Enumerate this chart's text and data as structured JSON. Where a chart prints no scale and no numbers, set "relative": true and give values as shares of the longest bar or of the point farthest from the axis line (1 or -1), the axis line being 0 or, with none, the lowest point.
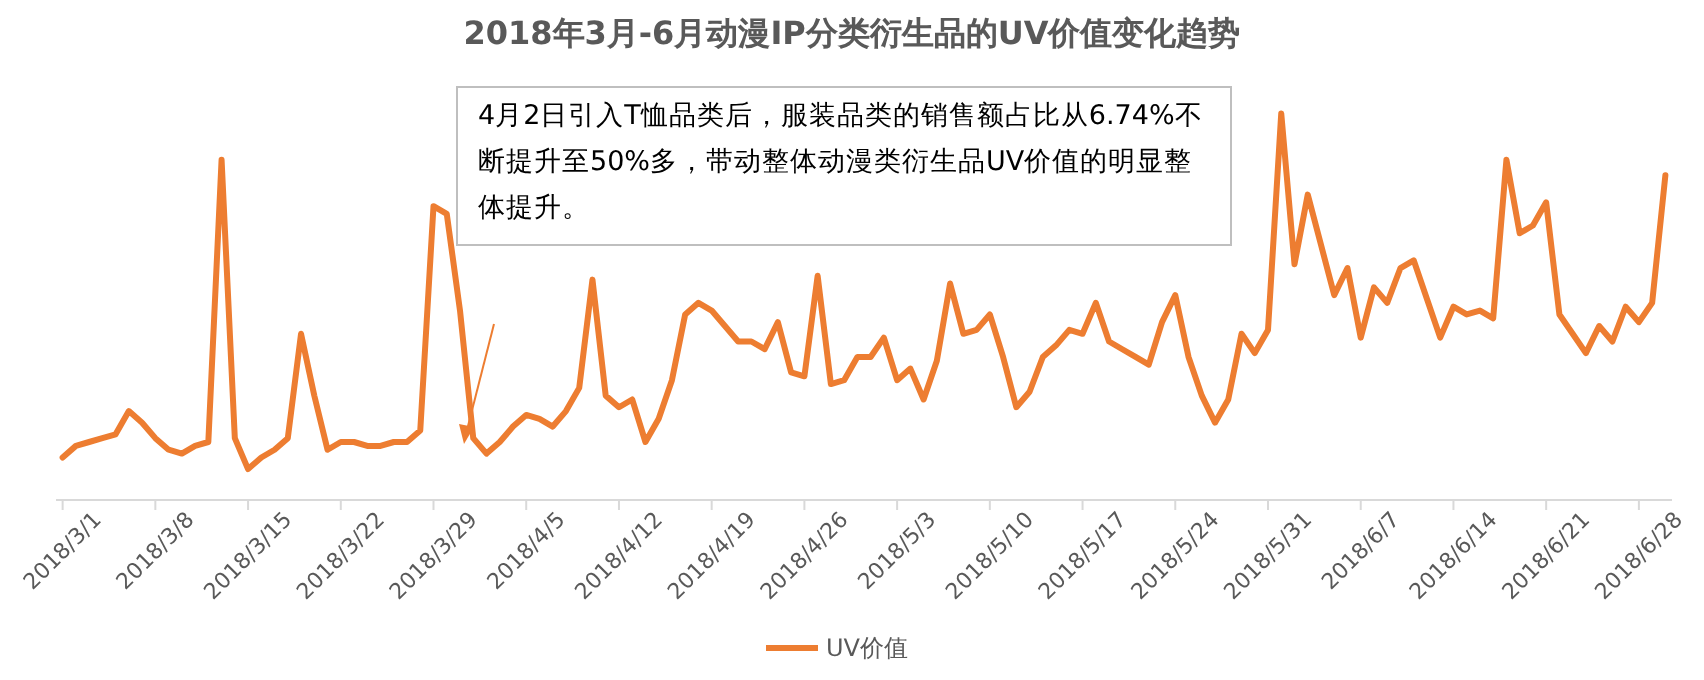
{
  "chart_data": {
    "type": "line",
    "title": "2018年3月-6月动漫IP分类衍生品的UV价值变化趋势",
    "categories": [
      "2018/3/1",
      null,
      null,
      null,
      null,
      null,
      null,
      "2018/3/8",
      null,
      null,
      null,
      null,
      null,
      null,
      "2018/3/15",
      null,
      null,
      null,
      null,
      null,
      null,
      "2018/3/22",
      null,
      null,
      null,
      null,
      null,
      null,
      "2018/3/29",
      null,
      null,
      null,
      null,
      null,
      null,
      "2018/4/5",
      null,
      null,
      null,
      null,
      null,
      null,
      "2018/4/12",
      null,
      null,
      null,
      null,
      null,
      null,
      "2018/4/19",
      null,
      null,
      null,
      null,
      null,
      null,
      "2018/4/26",
      null,
      null,
      null,
      null,
      null,
      null,
      "2018/5/3",
      null,
      null,
      null,
      null,
      null,
      null,
      "2018/5/10",
      null,
      null,
      null,
      null,
      null,
      null,
      "2018/5/17",
      null,
      null,
      null,
      null,
      null,
      null,
      "2018/5/24",
      null,
      null,
      null,
      null,
      null,
      null,
      "2018/5/31",
      null,
      null,
      null,
      null,
      null,
      null,
      "2018/6/7",
      null,
      null,
      null,
      null,
      null,
      null,
      "2018/6/14",
      null,
      null,
      null,
      null,
      null,
      null,
      "2018/6/21",
      null,
      null,
      null,
      null,
      null,
      null,
      "2018/6/28",
      null,
      null
    ],
    "series": [
      {
        "name": "UV价值",
        "color": "#ed7d31",
        "values": [
          0.11,
          0.14,
          0.15,
          0.16,
          0.17,
          0.23,
          0.2,
          0.16,
          0.13,
          0.12,
          0.14,
          0.15,
          0.88,
          0.16,
          0.08,
          0.11,
          0.13,
          0.16,
          0.43,
          0.27,
          0.13,
          0.15,
          0.15,
          0.14,
          0.14,
          0.15,
          0.15,
          0.18,
          0.76,
          0.74,
          0.49,
          0.16,
          0.12,
          0.15,
          0.19,
          0.22,
          0.21,
          0.19,
          0.23,
          0.29,
          0.57,
          0.27,
          0.24,
          0.26,
          0.15,
          0.21,
          0.31,
          0.48,
          0.51,
          0.49,
          0.45,
          0.41,
          0.41,
          0.39,
          0.46,
          0.33,
          0.32,
          0.58,
          0.3,
          0.31,
          0.37,
          0.37,
          0.42,
          0.31,
          0.34,
          0.26,
          0.36,
          0.56,
          0.43,
          0.44,
          0.48,
          0.37,
          0.24,
          0.28,
          0.37,
          0.4,
          0.44,
          0.43,
          0.51,
          0.41,
          0.39,
          0.37,
          0.35,
          0.46,
          0.53,
          0.37,
          0.27,
          0.2,
          0.26,
          0.43,
          0.38,
          0.44,
          1,
          0.61,
          0.79,
          0.66,
          0.53,
          0.6,
          0.42,
          0.55,
          0.51,
          0.6,
          0.62,
          0.52,
          0.42,
          0.5,
          0.48,
          0.49,
          0.47,
          0.88,
          0.69,
          0.71,
          0.77,
          0.48,
          0.43,
          0.38,
          0.45,
          0.41,
          0.5,
          0.46,
          0.51,
          0.84
        ]
      }
    ],
    "relative": true,
    "legend": "bottom",
    "annotations": [
      "4月2日引入T恤品类后，服装品类的销售额占比从6.74%不断提升至50%多，带动整体动漫类衍生品UV价值的明显整体提升。"
    ]
  }
}
